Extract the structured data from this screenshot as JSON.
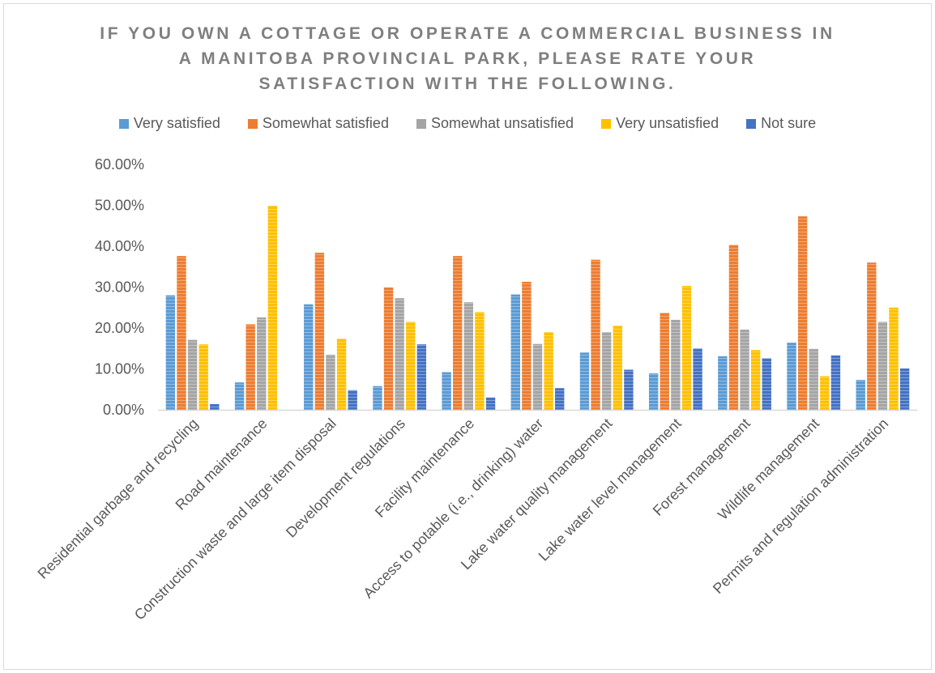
{
  "chart_data": {
    "type": "bar",
    "title_lines": [
      "IF YOU OWN A COTTAGE OR OPERATE A COMMERCIAL BUSINESS IN",
      "A MANITOBA PROVINCIAL PARK, PLEASE RATE YOUR",
      "SATISFACTION WITH THE FOLLOWING."
    ],
    "categories": [
      "Residential garbage and recycling",
      "Road maintenance",
      "Construction waste and large item disposal",
      "Development regulations",
      "Facility maintenance",
      "Access to potable (i.e., drinking) water",
      "Lake water quality management",
      "Lake water level management",
      "Forest management",
      "Wildlife management",
      "Permits and regulation administration"
    ],
    "series": [
      {
        "name": "Very satisfied",
        "color": "#5b9bd5",
        "values": [
          28.0,
          6.7,
          25.8,
          5.8,
          9.2,
          28.2,
          14.0,
          8.9,
          13.1,
          16.4,
          7.3
        ]
      },
      {
        "name": "Somewhat satisfied",
        "color": "#ed7d31",
        "values": [
          37.6,
          20.9,
          38.4,
          29.9,
          37.6,
          31.3,
          36.7,
          23.7,
          40.3,
          47.3,
          36.0
        ]
      },
      {
        "name": "Somewhat unsatisfied",
        "color": "#a5a5a5",
        "values": [
          17.1,
          22.6,
          13.5,
          27.3,
          26.3,
          16.1,
          19.0,
          22.0,
          19.6,
          14.9,
          21.5
        ]
      },
      {
        "name": "Very unsatisfied",
        "color": "#ffc000",
        "values": [
          16.0,
          49.9,
          17.4,
          21.5,
          23.9,
          19.0,
          20.6,
          30.3,
          14.6,
          8.2,
          25.0
        ]
      },
      {
        "name": "Not sure",
        "color": "#4472c4",
        "values": [
          1.4,
          0.0,
          4.8,
          16.0,
          3.0,
          5.3,
          9.8,
          15.0,
          12.6,
          13.3,
          10.1
        ]
      }
    ],
    "y_ticks": [
      "0.00%",
      "10.00%",
      "20.00%",
      "30.00%",
      "40.00%",
      "50.00%",
      "60.00%"
    ],
    "ylim": [
      0,
      60
    ],
    "xlabel": "",
    "ylabel": "",
    "grid": false,
    "legend_position": "top"
  }
}
